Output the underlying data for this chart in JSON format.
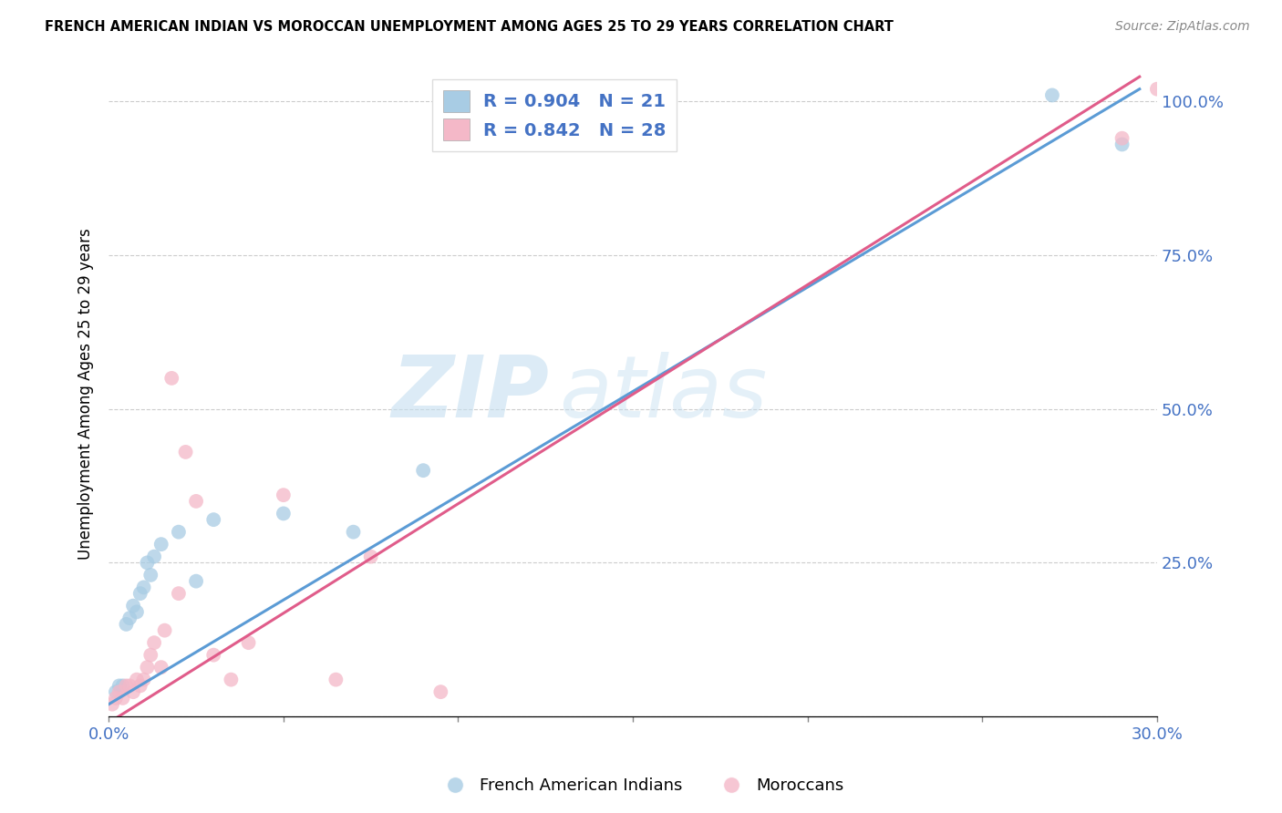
{
  "title": "FRENCH AMERICAN INDIAN VS MOROCCAN UNEMPLOYMENT AMONG AGES 25 TO 29 YEARS CORRELATION CHART",
  "source": "Source: ZipAtlas.com",
  "ylabel": "Unemployment Among Ages 25 to 29 years",
  "xlim": [
    0.0,
    0.3
  ],
  "ylim": [
    0.0,
    1.05
  ],
  "xticks": [
    0.0,
    0.05,
    0.1,
    0.15,
    0.2,
    0.25,
    0.3
  ],
  "yticks": [
    0.0,
    0.25,
    0.5,
    0.75,
    1.0
  ],
  "ytick_labels": [
    "",
    "25.0%",
    "50.0%",
    "75.0%",
    "100.0%"
  ],
  "xtick_labels": [
    "0.0%",
    "",
    "",
    "",
    "",
    "",
    "30.0%"
  ],
  "watermark_left": "ZIP",
  "watermark_right": "atlas",
  "blue_R": 0.904,
  "blue_N": 21,
  "pink_R": 0.842,
  "pink_N": 28,
  "blue_color": "#a8cce4",
  "pink_color": "#f4b8c8",
  "blue_line_color": "#5b9bd5",
  "pink_line_color": "#e05c8a",
  "blue_scatter_x": [
    0.002,
    0.003,
    0.004,
    0.005,
    0.006,
    0.007,
    0.008,
    0.009,
    0.01,
    0.011,
    0.012,
    0.013,
    0.015,
    0.02,
    0.025,
    0.03,
    0.05,
    0.07,
    0.09,
    0.27,
    0.29
  ],
  "blue_scatter_y": [
    0.04,
    0.05,
    0.05,
    0.15,
    0.16,
    0.18,
    0.17,
    0.2,
    0.21,
    0.25,
    0.23,
    0.26,
    0.28,
    0.3,
    0.22,
    0.32,
    0.33,
    0.3,
    0.4,
    1.01,
    0.93
  ],
  "pink_scatter_x": [
    0.001,
    0.002,
    0.003,
    0.004,
    0.005,
    0.006,
    0.007,
    0.008,
    0.009,
    0.01,
    0.011,
    0.012,
    0.013,
    0.015,
    0.016,
    0.018,
    0.02,
    0.022,
    0.025,
    0.03,
    0.035,
    0.04,
    0.05,
    0.065,
    0.075,
    0.095,
    0.29,
    0.3
  ],
  "pink_scatter_y": [
    0.02,
    0.03,
    0.04,
    0.03,
    0.05,
    0.05,
    0.04,
    0.06,
    0.05,
    0.06,
    0.08,
    0.1,
    0.12,
    0.08,
    0.14,
    0.55,
    0.2,
    0.43,
    0.35,
    0.1,
    0.06,
    0.12,
    0.36,
    0.06,
    0.26,
    0.04,
    0.94,
    1.02
  ],
  "blue_line_x": [
    0.0,
    0.295
  ],
  "blue_line_y": [
    0.02,
    1.02
  ],
  "pink_line_x": [
    0.0,
    0.295
  ],
  "pink_line_y": [
    -0.01,
    1.04
  ]
}
